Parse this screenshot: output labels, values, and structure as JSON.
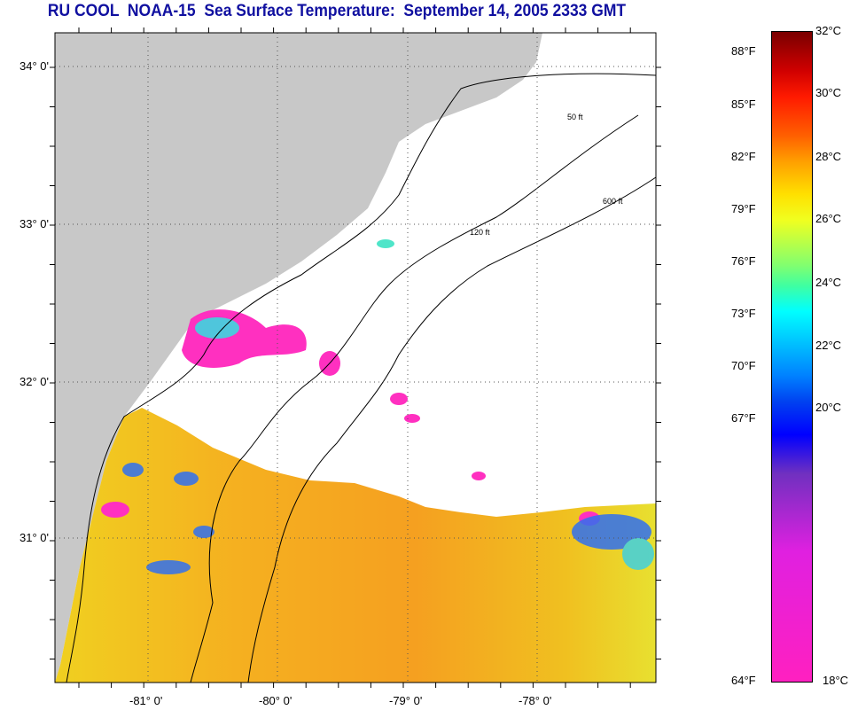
{
  "title": "RU COOL  NOAA-15  Sea Surface Temperature:  September 14, 2005 2333 GMT",
  "map": {
    "lat_labels": [
      "34° 0'",
      "33° 0'",
      "32° 0'",
      "31° 0'"
    ],
    "lon_labels": [
      "-81° 0'",
      "-80° 0'",
      "-79° 0'",
      "-78° 0'"
    ],
    "contour_labels": [
      "50 ft",
      "120 ft",
      "600 ft"
    ],
    "colors": {
      "land": "#c8c8c8",
      "cloud": "#ffffff",
      "sst_warm": "#f5a020",
      "sst_yellow": "#f0e020",
      "cold": "#ff30c0"
    }
  },
  "colorbar": {
    "fahrenheit": [
      "88°F",
      "85°F",
      "82°F",
      "79°F",
      "76°F",
      "73°F",
      "70°F",
      "67°F",
      "64°F"
    ],
    "celsius": [
      "32°C",
      "30°C",
      "28°C",
      "26°C",
      "24°C",
      "22°C",
      "20°C",
      "18°C"
    ]
  }
}
